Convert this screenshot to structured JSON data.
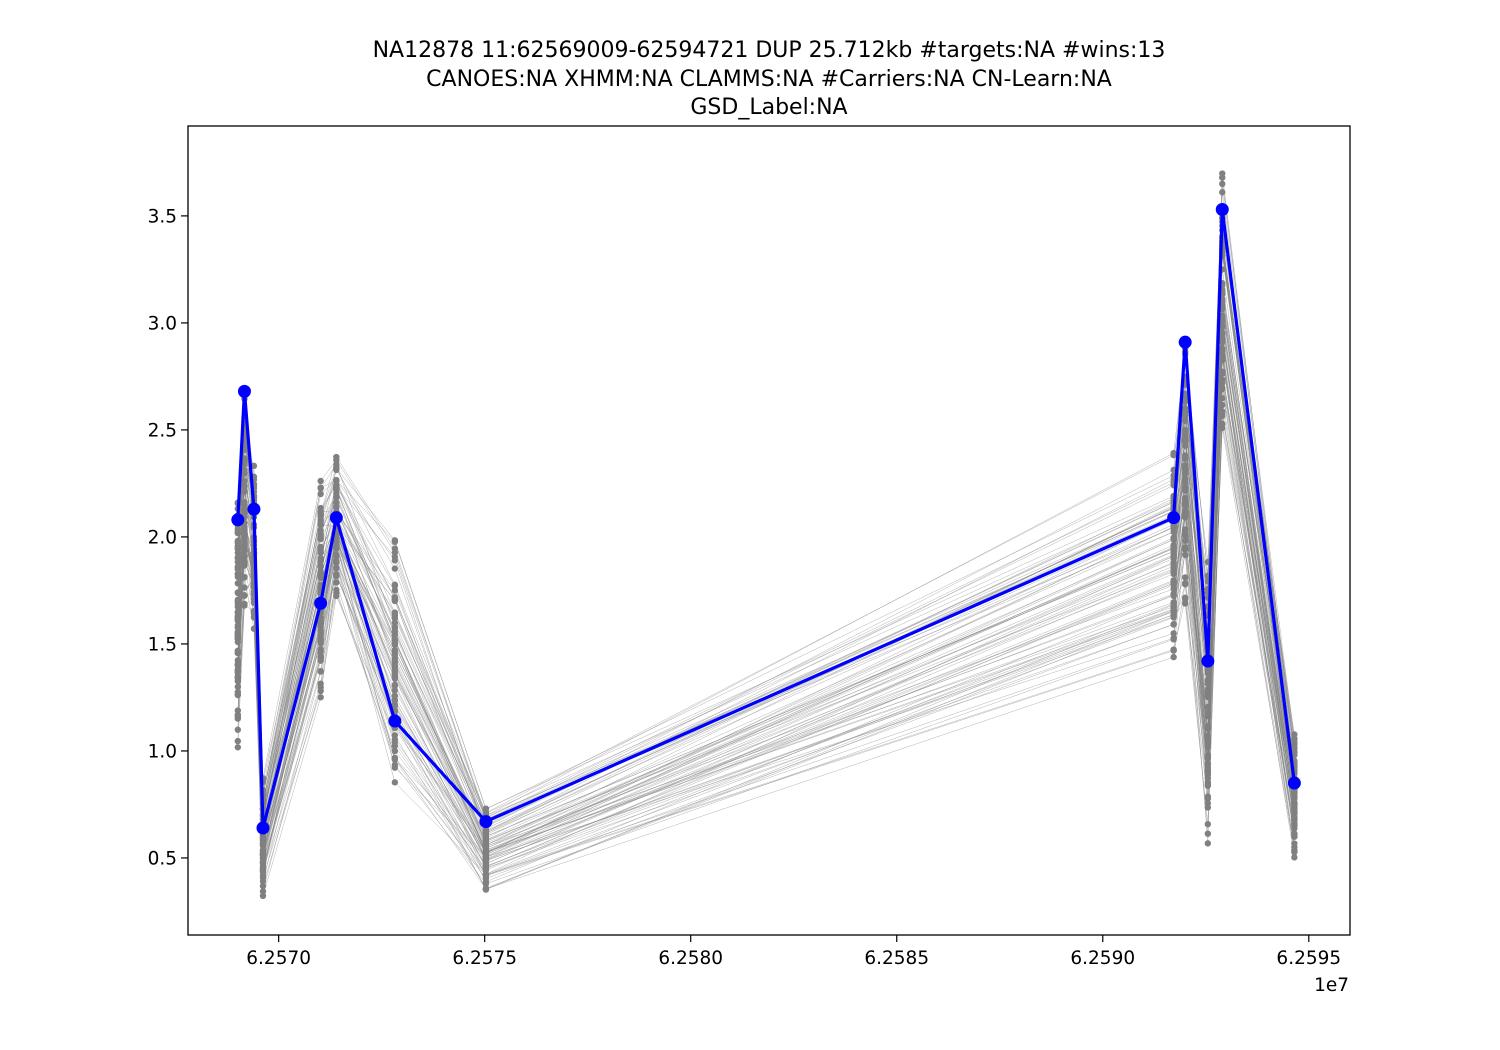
{
  "chart_data": {
    "type": "line",
    "title_lines": [
      "NA12878 11:62569009-62594721 DUP 25.712kb #targets:NA #wins:13",
      "CANOES:NA XHMM:NA CLAMMS:NA #Carriers:NA CN-Learn:NA",
      "GSD_Label:NA"
    ],
    "xlabel": "",
    "ylabel": "",
    "x_offset_label": "1e7",
    "xlim": [
      62567800,
      62596000
    ],
    "ylim": [
      0.14,
      3.92
    ],
    "x_ticks": [
      62570000,
      62575000,
      62580000,
      62585000,
      62590000,
      62595000
    ],
    "x_tick_labels": [
      "6.2570",
      "6.2575",
      "6.2580",
      "6.2585",
      "6.2590",
      "6.2595"
    ],
    "y_ticks": [
      0.5,
      1.0,
      1.5,
      2.0,
      2.5,
      3.0,
      3.5
    ],
    "y_tick_labels": [
      "0.5",
      "1.0",
      "1.5",
      "2.0",
      "2.5",
      "3.0",
      "3.5"
    ],
    "grid": false,
    "x": [
      62569009,
      62569170,
      62569400,
      62569620,
      62571020,
      62571400,
      62572820,
      62575030,
      62591720,
      62592000,
      62592550,
      62592900,
      62594650
    ],
    "series": [
      {
        "role": "highlighted sample",
        "color": "#0000ff",
        "values": [
          2.08,
          2.68,
          2.13,
          0.64,
          1.69,
          2.09,
          1.14,
          0.67,
          2.09,
          2.91,
          1.42,
          3.53,
          0.85
        ]
      }
    ],
    "background": {
      "role": "other samples",
      "color": "#808080",
      "count": 80,
      "ranges": [
        [
          0.98,
          2.3
        ],
        [
          1.65,
          2.74
        ],
        [
          1.56,
          2.39
        ],
        [
          0.31,
          0.9
        ],
        [
          1.2,
          2.34
        ],
        [
          1.7,
          2.4
        ],
        [
          0.76,
          2.06
        ],
        [
          0.32,
          0.77
        ],
        [
          1.38,
          2.45
        ],
        [
          1.67,
          3.01
        ],
        [
          0.53,
          1.95
        ],
        [
          2.43,
          3.75
        ],
        [
          0.47,
          1.12
        ]
      ]
    }
  }
}
